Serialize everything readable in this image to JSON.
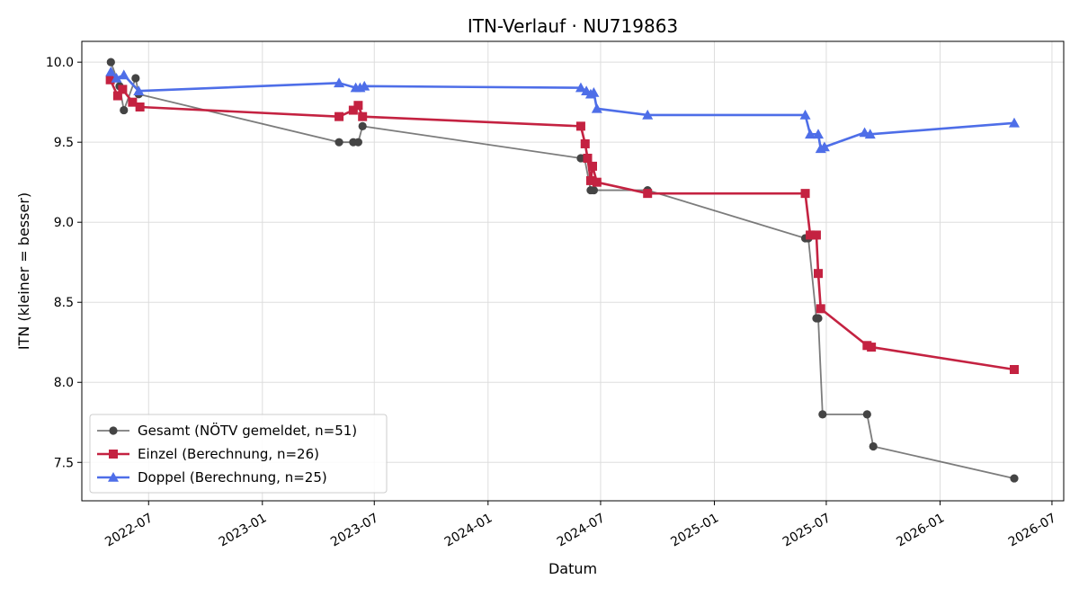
{
  "chart_data": {
    "type": "line",
    "title": "ITN-Verlauf · NU719863",
    "xlabel": "Datum",
    "ylabel": "ITN  (kleiner = besser)",
    "x_type": "date",
    "xlim": [
      "2022-03-15",
      "2026-07-20"
    ],
    "ylim": [
      7.26,
      10.13
    ],
    "grid": true,
    "legend_position": "lower-left",
    "x_ticks": [
      "2022-07",
      "2023-01",
      "2023-07",
      "2024-01",
      "2024-07",
      "2025-01",
      "2025-07",
      "2026-01",
      "2026-07"
    ],
    "x_tick_dates": [
      "2022-07-01",
      "2023-01-01",
      "2023-07-01",
      "2024-01-01",
      "2024-07-01",
      "2025-01-01",
      "2025-07-01",
      "2026-01-01",
      "2026-07-01"
    ],
    "y_ticks": [
      "7.5",
      "8.0",
      "8.5",
      "9.0",
      "9.5",
      "10.0"
    ],
    "y_tick_values": [
      7.5,
      8.0,
      8.5,
      9.0,
      9.5,
      10.0
    ],
    "series": [
      {
        "name": "Gesamt (NÖTV gemeldet, n=51)",
        "color": "#444444",
        "marker": "circle",
        "x": [
          "2022-05-01",
          "2022-05-15",
          "2022-05-22",
          "2022-06-10",
          "2022-06-15",
          "2023-05-05",
          "2023-05-28",
          "2023-06-05",
          "2023-06-12",
          "2024-05-30",
          "2024-06-05",
          "2024-06-15",
          "2024-06-20",
          "2024-09-15",
          "2025-05-28",
          "2025-06-02",
          "2025-06-15",
          "2025-06-18",
          "2025-06-25",
          "2025-09-05",
          "2025-09-15",
          "2026-05-01"
        ],
        "y": [
          10.0,
          9.85,
          9.7,
          9.9,
          9.8,
          9.5,
          9.5,
          9.5,
          9.6,
          9.4,
          9.4,
          9.2,
          9.2,
          9.2,
          8.9,
          8.9,
          8.4,
          8.4,
          7.8,
          7.8,
          7.6,
          7.4
        ]
      },
      {
        "name": "Einzel (Berechnung, n=26)",
        "color": "#c42241",
        "marker": "square",
        "x": [
          "2022-04-30",
          "2022-05-12",
          "2022-05-20",
          "2022-06-05",
          "2022-06-17",
          "2023-05-05",
          "2023-05-28",
          "2023-06-05",
          "2023-06-12",
          "2024-05-30",
          "2024-06-06",
          "2024-06-10",
          "2024-06-15",
          "2024-06-18",
          "2024-06-25",
          "2024-09-15",
          "2025-05-28",
          "2025-06-05",
          "2025-06-15",
          "2025-06-18",
          "2025-06-22",
          "2025-09-05",
          "2025-09-12",
          "2026-05-01"
        ],
        "y": [
          9.89,
          9.79,
          9.83,
          9.75,
          9.72,
          9.66,
          9.7,
          9.73,
          9.66,
          9.6,
          9.49,
          9.4,
          9.26,
          9.35,
          9.25,
          9.18,
          9.18,
          8.92,
          8.92,
          8.68,
          8.46,
          8.23,
          8.22,
          8.08
        ]
      },
      {
        "name": "Doppel (Berechnung, n=25)",
        "color": "#4e6ee8",
        "marker": "triangle",
        "x": [
          "2022-05-01",
          "2022-05-10",
          "2022-05-22",
          "2022-06-15",
          "2023-05-05",
          "2023-06-01",
          "2023-06-08",
          "2023-06-15",
          "2024-05-30",
          "2024-06-08",
          "2024-06-15",
          "2024-06-20",
          "2024-06-25",
          "2024-09-15",
          "2025-05-28",
          "2025-06-05",
          "2025-06-18",
          "2025-06-22",
          "2025-06-28",
          "2025-09-01",
          "2025-09-10",
          "2026-05-01"
        ],
        "y": [
          9.94,
          9.9,
          9.92,
          9.82,
          9.87,
          9.84,
          9.84,
          9.85,
          9.84,
          9.82,
          9.8,
          9.81,
          9.71,
          9.67,
          9.67,
          9.55,
          9.55,
          9.46,
          9.47,
          9.56,
          9.55,
          9.62
        ]
      }
    ]
  }
}
